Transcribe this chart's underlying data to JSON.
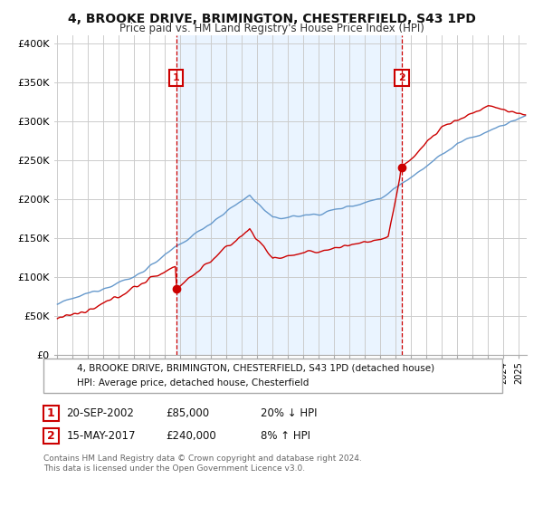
{
  "title": "4, BROOKE DRIVE, BRIMINGTON, CHESTERFIELD, S43 1PD",
  "subtitle": "Price paid vs. HM Land Registry's House Price Index (HPI)",
  "ylabel_ticks": [
    "£0",
    "£50K",
    "£100K",
    "£150K",
    "£200K",
    "£250K",
    "£300K",
    "£350K",
    "£400K"
  ],
  "ytick_values": [
    0,
    50000,
    100000,
    150000,
    200000,
    250000,
    300000,
    350000,
    400000
  ],
  "ylim": [
    0,
    410000
  ],
  "xlim_start": 1994.8,
  "xlim_end": 2025.5,
  "legend_label_red": "4, BROOKE DRIVE, BRIMINGTON, CHESTERFIELD, S43 1PD (detached house)",
  "legend_label_blue": "HPI: Average price, detached house, Chesterfield",
  "transaction1_date": "20-SEP-2002",
  "transaction1_price": "£85,000",
  "transaction1_hpi": "20% ↓ HPI",
  "transaction1_year": 2002.72,
  "transaction1_value": 85000,
  "transaction2_date": "15-MAY-2017",
  "transaction2_price": "£240,000",
  "transaction2_hpi": "8% ↑ HPI",
  "transaction2_year": 2017.37,
  "transaction2_value": 240000,
  "footnote1": "Contains HM Land Registry data © Crown copyright and database right 2024.",
  "footnote2": "This data is licensed under the Open Government Licence v3.0.",
  "red_color": "#cc0000",
  "blue_color": "#6699cc",
  "fill_color": "#ddeeff",
  "vline_color": "#cc0000",
  "bg_color": "#ffffff",
  "grid_color": "#cccccc",
  "annotation_box_color": "#cc0000",
  "border_color": "#aaaaaa"
}
